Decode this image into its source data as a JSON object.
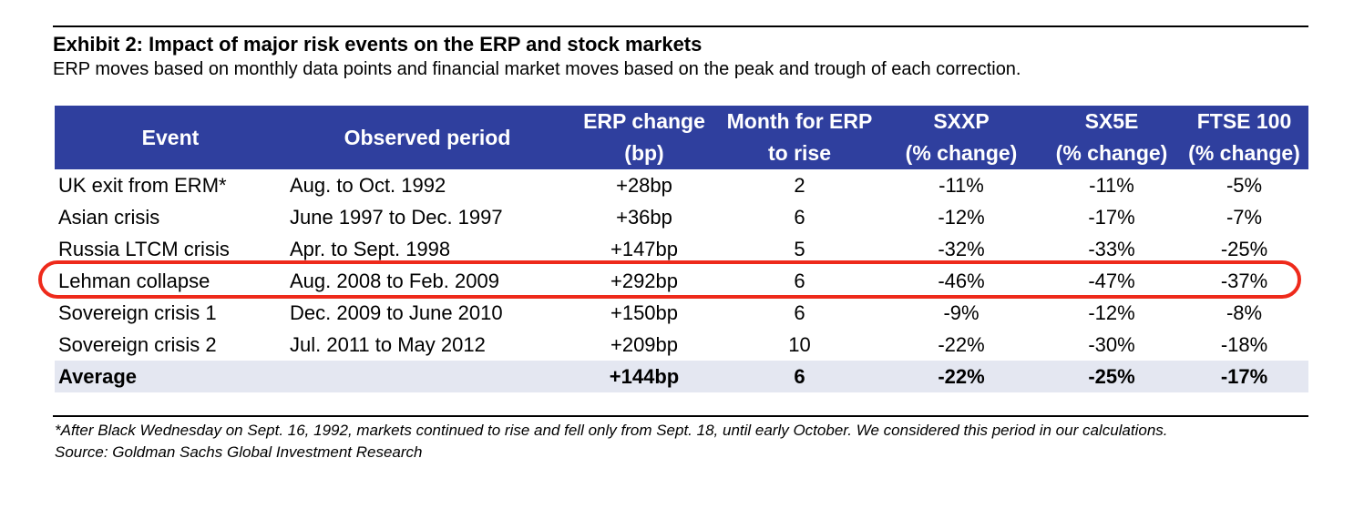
{
  "title": "Exhibit 2: Impact of major risk events on the ERP and stock markets",
  "subtitle": "ERP moves based on monthly data points and financial market moves based on the peak and trough of each correction.",
  "table": {
    "headers": [
      {
        "line1": "Event",
        "line2": ""
      },
      {
        "line1": "Observed period",
        "line2": ""
      },
      {
        "line1": "ERP change",
        "line2": "(bp)"
      },
      {
        "line1": "Month for ERP",
        "line2": "to rise"
      },
      {
        "line1": "SXXP",
        "line2": "(% change)"
      },
      {
        "line1": "SX5E",
        "line2": "(% change)"
      },
      {
        "line1": "FTSE 100",
        "line2": "(% change)"
      }
    ],
    "rows": [
      {
        "event": "UK exit from ERM*",
        "period": "Aug. to Oct. 1992",
        "erp": "+28bp",
        "months": "2",
        "sxxp": "-11%",
        "sx5e": "-11%",
        "ftse": "-5%"
      },
      {
        "event": "Asian crisis",
        "period": "June 1997 to Dec. 1997",
        "erp": "+36bp",
        "months": "6",
        "sxxp": "-12%",
        "sx5e": "-17%",
        "ftse": "-7%"
      },
      {
        "event": "Russia LTCM crisis",
        "period": "Apr. to Sept. 1998",
        "erp": "+147bp",
        "months": "5",
        "sxxp": "-32%",
        "sx5e": "-33%",
        "ftse": "-25%"
      },
      {
        "event": "Lehman collapse",
        "period": "Aug. 2008 to Feb. 2009",
        "erp": "+292bp",
        "months": "6",
        "sxxp": "-46%",
        "sx5e": "-47%",
        "ftse": "-37%"
      },
      {
        "event": "Sovereign crisis 1",
        "period": "Dec. 2009 to June 2010",
        "erp": "+150bp",
        "months": "6",
        "sxxp": "-9%",
        "sx5e": "-12%",
        "ftse": "-8%"
      },
      {
        "event": "Sovereign crisis 2",
        "period": "Jul. 2011 to May 2012",
        "erp": "+209bp",
        "months": "10",
        "sxxp": "-22%",
        "sx5e": "-30%",
        "ftse": "-18%"
      }
    ],
    "average": {
      "event": "Average",
      "period": "",
      "erp": "+144bp",
      "months": "6",
      "sxxp": "-22%",
      "sx5e": "-25%",
      "ftse": "-17%"
    },
    "highlighted_event": "Lehman collapse"
  },
  "footnote": "*After Black Wednesday on Sept. 16, 1992, markets continued to rise and fell only from Sept. 18, until early October. We considered this period in our calculations.",
  "source": "Source: Goldman Sachs Global Investment Research",
  "colors": {
    "header_bg": "#2f3f9e",
    "average_bg": "#e4e7f1",
    "highlight": "#ee2a1b"
  }
}
